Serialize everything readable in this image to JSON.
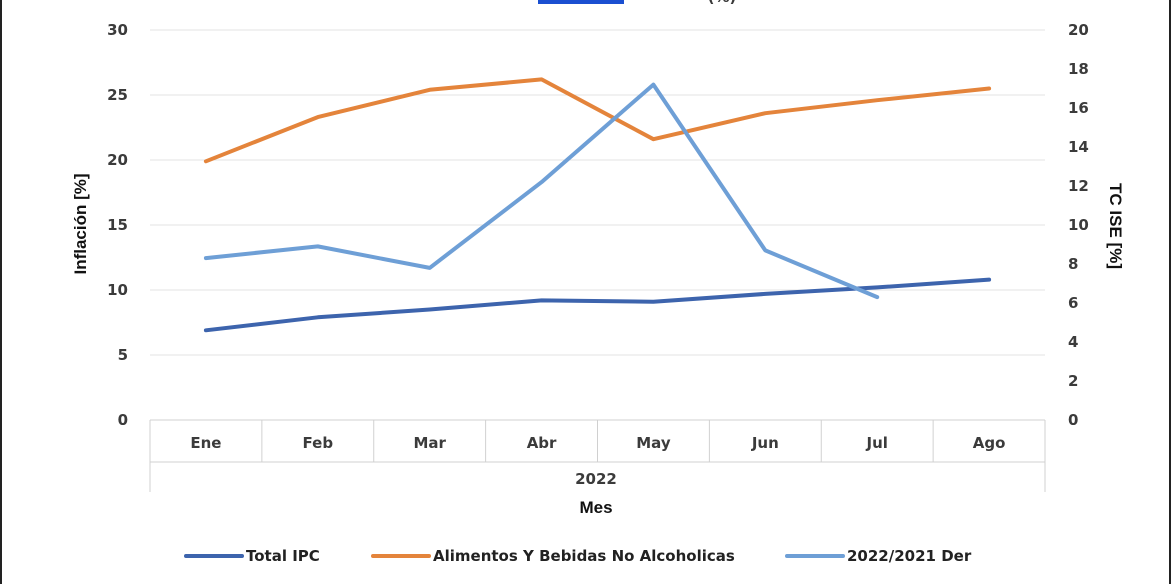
{
  "header_fragment": "(%)",
  "chart_data": {
    "type": "line",
    "categories": [
      "Ene",
      "Feb",
      "Mar",
      "Abr",
      "May",
      "Jun",
      "Jul",
      "Ago"
    ],
    "group_label": "2022",
    "xlabel": "Mes",
    "ylabel_left": "Inflación [%]",
    "ylabel_right": "TC ISE [%]",
    "ylim_left": [
      0,
      30
    ],
    "ylim_right": [
      0,
      20
    ],
    "yticks_left": [
      "30",
      "25",
      "20",
      "15",
      "10",
      "5",
      "0"
    ],
    "yticks_right": [
      "20",
      "18",
      "16",
      "14",
      "12",
      "10",
      "8",
      "6",
      "4",
      "2",
      "0"
    ],
    "grid": true,
    "legend_position": "bottom",
    "series": [
      {
        "name": "Total IPC",
        "axis": "left",
        "color": "#3d64ad",
        "values": [
          6.9,
          7.9,
          8.5,
          9.2,
          9.1,
          9.7,
          10.2,
          10.8
        ]
      },
      {
        "name": "Alimentos Y Bebidas No Alcoholicas",
        "axis": "left",
        "color": "#e4843b",
        "values": [
          19.9,
          23.3,
          25.4,
          26.2,
          21.6,
          23.6,
          24.6,
          25.5
        ]
      },
      {
        "name": "2022/2021 Der",
        "axis": "right",
        "color": "#6e9fd6",
        "values": [
          8.3,
          8.9,
          7.8,
          12.2,
          17.2,
          8.7,
          6.3,
          null
        ]
      }
    ]
  }
}
